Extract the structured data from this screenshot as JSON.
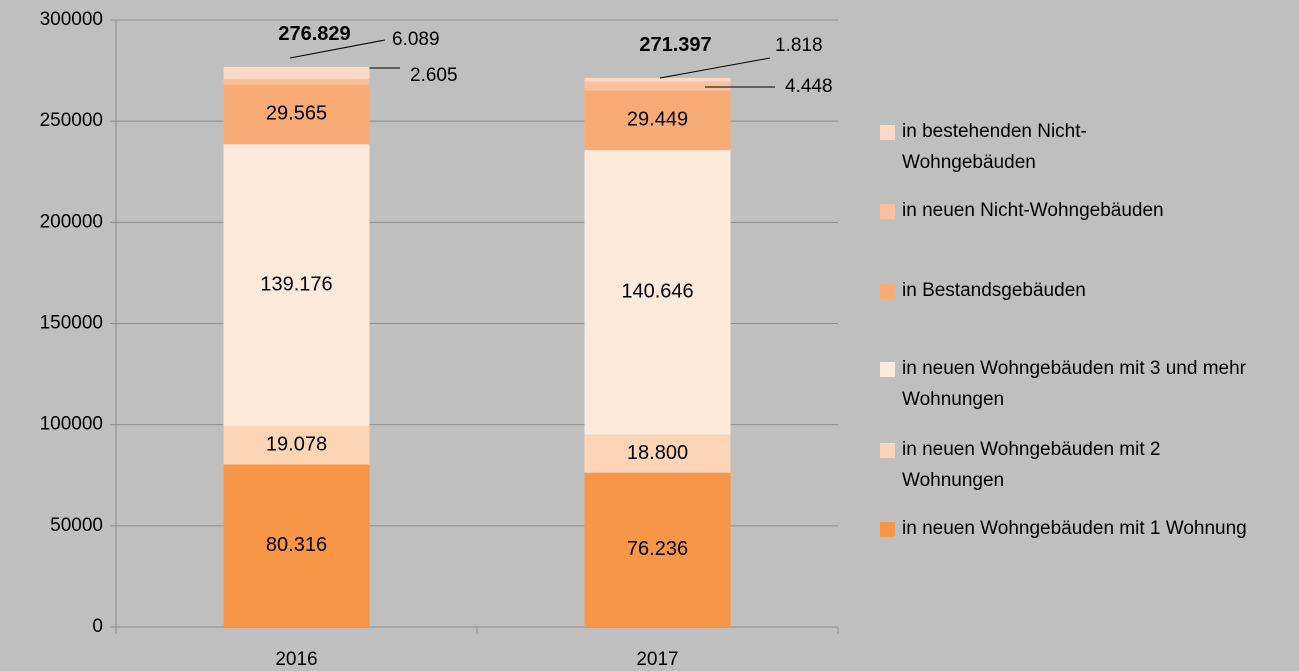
{
  "chart_data": {
    "type": "stacked_bar",
    "categories": [
      "2016",
      "2017"
    ],
    "series": [
      {
        "name": "in neuen Wohngebäuden mit 1 Wohnung",
        "color": "#f79646",
        "values": [
          80316,
          76236
        ],
        "value_labels": [
          "80.316",
          "76.236"
        ]
      },
      {
        "name": "in neuen Wohngebäuden mit 2 Wohnungen",
        "color": "#fbd5b5",
        "values": [
          19078,
          18800
        ],
        "value_labels": [
          "19.078",
          "18.800"
        ]
      },
      {
        "name": "in neuen Wohngebäuden mit 3 und mehr Wohnungen",
        "color": "#fdeada",
        "values": [
          139176,
          140646
        ],
        "value_labels": [
          "139.176",
          "140.646"
        ]
      },
      {
        "name": "in Bestandsgebäuden",
        "color": "#f9ab75",
        "values": [
          29565,
          29449
        ],
        "value_labels": [
          "29.565",
          "29.449"
        ]
      },
      {
        "name": "in neuen Nicht-Wohngebäuden",
        "color": "#f8c09c",
        "values": [
          2605,
          4448
        ],
        "value_labels": [
          "2.605",
          "4.448"
        ]
      },
      {
        "name": "in bestehenden Nicht-Wohngebäuden",
        "color": "#fbd8c8",
        "values": [
          6089,
          1818
        ],
        "value_labels": [
          "6.089",
          "1.818"
        ]
      }
    ],
    "totals": {
      "values": [
        276829,
        271397
      ],
      "value_labels": [
        "276.829",
        "271.397"
      ]
    },
    "ylim": [
      0,
      300000
    ],
    "yticks": [
      0,
      50000,
      100000,
      150000,
      200000,
      250000,
      300000
    ],
    "grid": true,
    "legend": "right"
  }
}
